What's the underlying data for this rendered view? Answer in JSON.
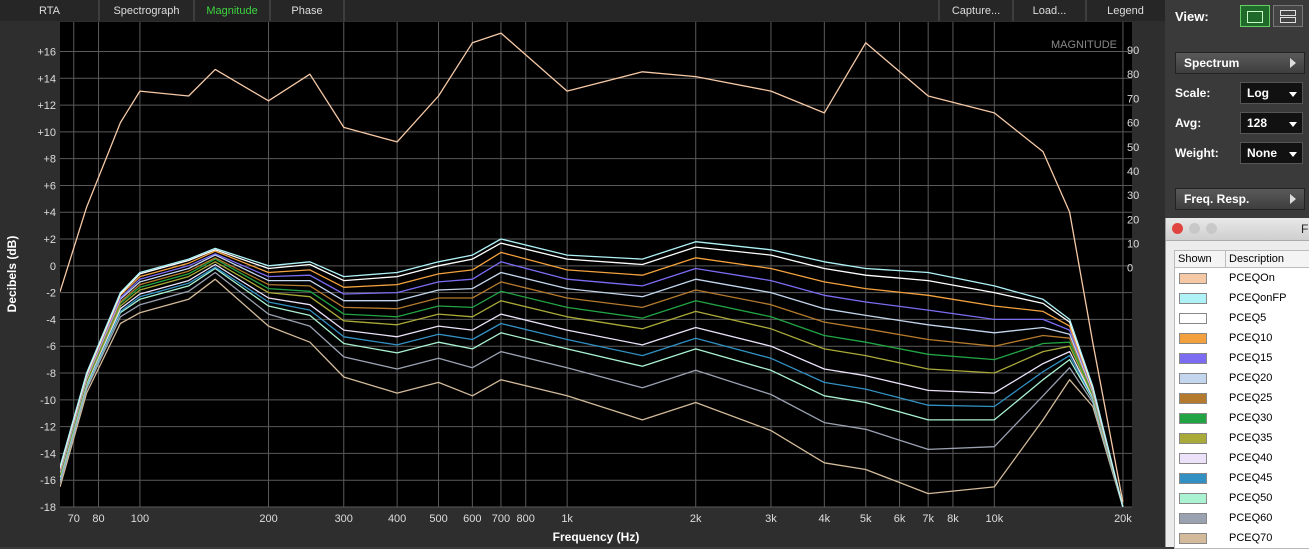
{
  "tabs_left": [
    "RTA",
    "Spectrograph",
    "Magnitude",
    "Phase"
  ],
  "tabs_right": [
    "Capture...",
    "Load...",
    "Legend"
  ],
  "side_panel": {
    "view_label": "View:",
    "spectrum": "Spectrum",
    "scale_label": "Scale:",
    "scale_value": "Log",
    "avg_label": "Avg:",
    "avg_value": "128",
    "weight_label": "Weight:",
    "weight_value": "None",
    "freq_resp": "Freq. Resp."
  },
  "legend_window": {
    "title": "F",
    "col_shown": "Shown",
    "col_description": "Description"
  },
  "chart_data": {
    "type": "line",
    "title": "MAGNITUDE",
    "x_label": "Frequency (Hz)",
    "y_label": "Decibels (dB)",
    "log_x": true,
    "grid": true,
    "xlim": [
      65,
      21000
    ],
    "ylim": [
      -18,
      18.2
    ],
    "y2lim": [
      -99,
      101.6
    ],
    "xticks": [
      70,
      80,
      100,
      200,
      300,
      400,
      500,
      600,
      700,
      800,
      {
        "value": 1000,
        "label": "1k"
      },
      {
        "value": 2000,
        "label": "2k"
      },
      {
        "value": 3000,
        "label": "3k"
      },
      {
        "value": 4000,
        "label": "4k"
      },
      {
        "value": 5000,
        "label": "5k"
      },
      {
        "value": 6000,
        "label": "6k"
      },
      {
        "value": 7000,
        "label": "7k"
      },
      {
        "value": 8000,
        "label": "8k"
      },
      {
        "value": 10000,
        "label": "10k"
      },
      {
        "value": 20000,
        "label": "20k"
      }
    ],
    "yticks": [
      -18,
      -16,
      -14,
      -12,
      -10,
      -8,
      -6,
      -4,
      -2,
      0,
      {
        "value": 2,
        "label": "+2"
      },
      {
        "value": 4,
        "label": "+4"
      },
      {
        "value": 6,
        "label": "+6"
      },
      {
        "value": 8,
        "label": "+8"
      },
      {
        "value": 10,
        "label": "+10"
      },
      {
        "value": 12,
        "label": "+12"
      },
      {
        "value": 14,
        "label": "+14"
      },
      {
        "value": 16,
        "label": "+16"
      }
    ],
    "y2ticks": [
      0,
      10,
      20,
      30,
      40,
      50,
      60,
      70,
      80,
      90
    ],
    "x": [
      65,
      75,
      90,
      100,
      130,
      150,
      200,
      250,
      300,
      400,
      500,
      600,
      700,
      1000,
      1500,
      2000,
      3000,
      4000,
      5000,
      7000,
      10000,
      13000,
      15000,
      17000,
      20000
    ],
    "series": [
      {
        "name": "PCEQOn",
        "color": "#f6c9a6",
        "axis": "y2",
        "values": [
          -10,
          25,
          60,
          73,
          71,
          82,
          69,
          80,
          58,
          52,
          71,
          93,
          97,
          73,
          81,
          79,
          73,
          64,
          93,
          71,
          64,
          48,
          23,
          -31,
          -97
        ]
      },
      {
        "name": "PCEQonFP",
        "color": "#aef2f8",
        "values": [
          -15,
          -8,
          -2,
          -0.5,
          0.5,
          1.3,
          0,
          0.3,
          -0.8,
          -0.5,
          0.3,
          0.8,
          2,
          0.8,
          0.5,
          1.8,
          1.2,
          0.3,
          -0.2,
          -0.5,
          -1.5,
          -2.5,
          -4,
          -9,
          -18
        ]
      },
      {
        "name": "PCEQ5",
        "color": "#ffffff",
        "values": [
          -15.1,
          -8.1,
          -2.1,
          -0.6,
          0.4,
          1.2,
          -0.2,
          0.1,
          -1.1,
          -0.8,
          0,
          0.5,
          1.7,
          0.5,
          0.1,
          1.4,
          0.8,
          -0.2,
          -0.7,
          -1.1,
          -2,
          -2.8,
          -4.2,
          -9.1,
          -18
        ]
      },
      {
        "name": "PCEQ10",
        "color": "#f3a13e",
        "values": [
          -15.2,
          -8.2,
          -2.2,
          -0.8,
          0.2,
          1.1,
          -0.5,
          -0.3,
          -1.6,
          -1.4,
          -0.6,
          -0.3,
          1,
          -0.3,
          -0.7,
          0.6,
          -0.2,
          -1.2,
          -1.7,
          -2.2,
          -3,
          -3.4,
          -4.5,
          -9.2,
          -18
        ]
      },
      {
        "name": "PCEQ15",
        "color": "#7b6cf2",
        "values": [
          -15.3,
          -8.3,
          -2.4,
          -1,
          0,
          0.9,
          -0.8,
          -0.7,
          -2.1,
          -2,
          -1.2,
          -1,
          0.3,
          -1,
          -1.5,
          -0.2,
          -1.1,
          -2.2,
          -2.7,
          -3.3,
          -4,
          -4,
          -4.8,
          -9.3,
          -18
        ]
      },
      {
        "name": "PCEQ20",
        "color": "#c3d6ee",
        "values": [
          -15.4,
          -8.4,
          -2.5,
          -1.2,
          -0.2,
          0.8,
          -1.1,
          -1.1,
          -2.6,
          -2.6,
          -1.8,
          -1.7,
          -0.5,
          -1.7,
          -2.3,
          -1,
          -2,
          -3.2,
          -3.7,
          -4.4,
          -5,
          -4.6,
          -5.1,
          -9.4,
          -18
        ]
      },
      {
        "name": "PCEQ25",
        "color": "#b47a2e",
        "values": [
          -15.5,
          -8.5,
          -2.7,
          -1.4,
          -0.4,
          0.6,
          -1.4,
          -1.5,
          -3.1,
          -3.2,
          -2.4,
          -2.4,
          -1.2,
          -2.4,
          -3.1,
          -1.8,
          -2.9,
          -4.2,
          -4.7,
          -5.5,
          -6,
          -5.2,
          -5.4,
          -9.5,
          -18
        ]
      },
      {
        "name": "PCEQ30",
        "color": "#22a444",
        "values": [
          -15.6,
          -8.6,
          -2.8,
          -1.6,
          -0.6,
          0.5,
          -1.7,
          -1.9,
          -3.6,
          -3.8,
          -3,
          -3.1,
          -1.9,
          -3.1,
          -3.9,
          -2.6,
          -3.8,
          -5.2,
          -5.7,
          -6.6,
          -7,
          -5.8,
          -5.7,
          -9.6,
          -18
        ]
      },
      {
        "name": "PCEQ35",
        "color": "#aaaa3a",
        "values": [
          -15.7,
          -8.7,
          -3,
          -1.8,
          -0.8,
          0.3,
          -2,
          -2.3,
          -4.1,
          -4.4,
          -3.6,
          -3.8,
          -2.6,
          -3.8,
          -4.7,
          -3.4,
          -4.7,
          -6.2,
          -6.7,
          -7.7,
          -8,
          -6.4,
          -6,
          -9.7,
          -18
        ]
      },
      {
        "name": "PCEQ40",
        "color": "#ebe2fa",
        "values": [
          -15.8,
          -8.8,
          -3.2,
          -2.1,
          -1.1,
          0.1,
          -2.4,
          -2.9,
          -4.8,
          -5.3,
          -4.5,
          -4.8,
          -3.6,
          -4.8,
          -5.9,
          -4.6,
          -6,
          -7.7,
          -8.2,
          -9.3,
          -9.5,
          -7.3,
          -6.4,
          -9.8,
          -18
        ]
      },
      {
        "name": "PCEQ45",
        "color": "#3290c2",
        "values": [
          -15.9,
          -8.9,
          -3.4,
          -2.3,
          -1.3,
          -0.1,
          -2.7,
          -3.3,
          -5.3,
          -5.9,
          -5.1,
          -5.5,
          -4.3,
          -5.5,
          -6.7,
          -5.4,
          -6.9,
          -8.7,
          -9.2,
          -10.4,
          -10.5,
          -7.9,
          -6.7,
          -9.9,
          -18
        ]
      },
      {
        "name": "PCEQ50",
        "color": "#aaf2d2",
        "values": [
          -16,
          -9,
          -3.5,
          -2.5,
          -1.5,
          -0.2,
          -3,
          -3.7,
          -5.8,
          -6.5,
          -5.7,
          -6.2,
          -5,
          -6.2,
          -7.5,
          -6.2,
          -7.8,
          -9.7,
          -10.2,
          -11.5,
          -11.5,
          -8.5,
          -7,
          -10,
          -18
        ]
      },
      {
        "name": "PCEQ60",
        "color": "#9aa2b2",
        "values": [
          -16.2,
          -9.2,
          -3.8,
          -2.9,
          -1.9,
          -0.5,
          -3.6,
          -4.5,
          -6.8,
          -7.7,
          -6.9,
          -7.6,
          -6.4,
          -7.6,
          -9.1,
          -7.8,
          -9.6,
          -11.7,
          -12.2,
          -13.7,
          -13.5,
          -9.7,
          -7.6,
          -10.2,
          -18
        ]
      },
      {
        "name": "PCEQ70",
        "color": "#d2ba9a",
        "values": [
          -16.5,
          -9.5,
          -4.3,
          -3.5,
          -2.5,
          -1,
          -4.5,
          -5.7,
          -8.3,
          -9.5,
          -8.7,
          -9.7,
          -8.5,
          -9.7,
          -11.5,
          -10.2,
          -12.3,
          -14.7,
          -15.2,
          -17,
          -16.5,
          -11.5,
          -8.5,
          -10.5,
          -18
        ]
      }
    ]
  }
}
